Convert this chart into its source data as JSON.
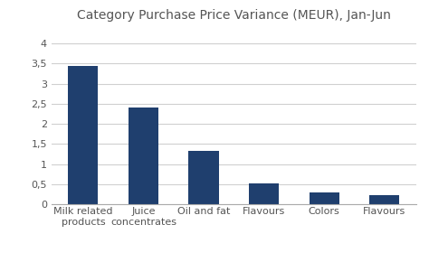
{
  "title": "Category Purchase Price Variance (MEUR), Jan-Jun",
  "categories": [
    "Milk related\nproducts",
    "Juice\nconcentrates",
    "Oil and fat",
    "Flavours",
    "Colors",
    "Flavours"
  ],
  "values": [
    3.45,
    2.4,
    1.32,
    0.51,
    0.3,
    0.22
  ],
  "bar_color": "#1F3F6E",
  "ylim": [
    0,
    4.3
  ],
  "yticks": [
    0,
    0.5,
    1.0,
    1.5,
    2.0,
    2.5,
    3.0,
    3.5,
    4.0
  ],
  "ytick_labels": [
    "0",
    "0,5",
    "1",
    "1,5",
    "2",
    "2,5",
    "3",
    "3,5",
    "4"
  ],
  "background_color": "#ffffff",
  "title_fontsize": 10,
  "tick_fontsize": 8,
  "grid_color": "#d0d0d0",
  "bar_width": 0.5
}
